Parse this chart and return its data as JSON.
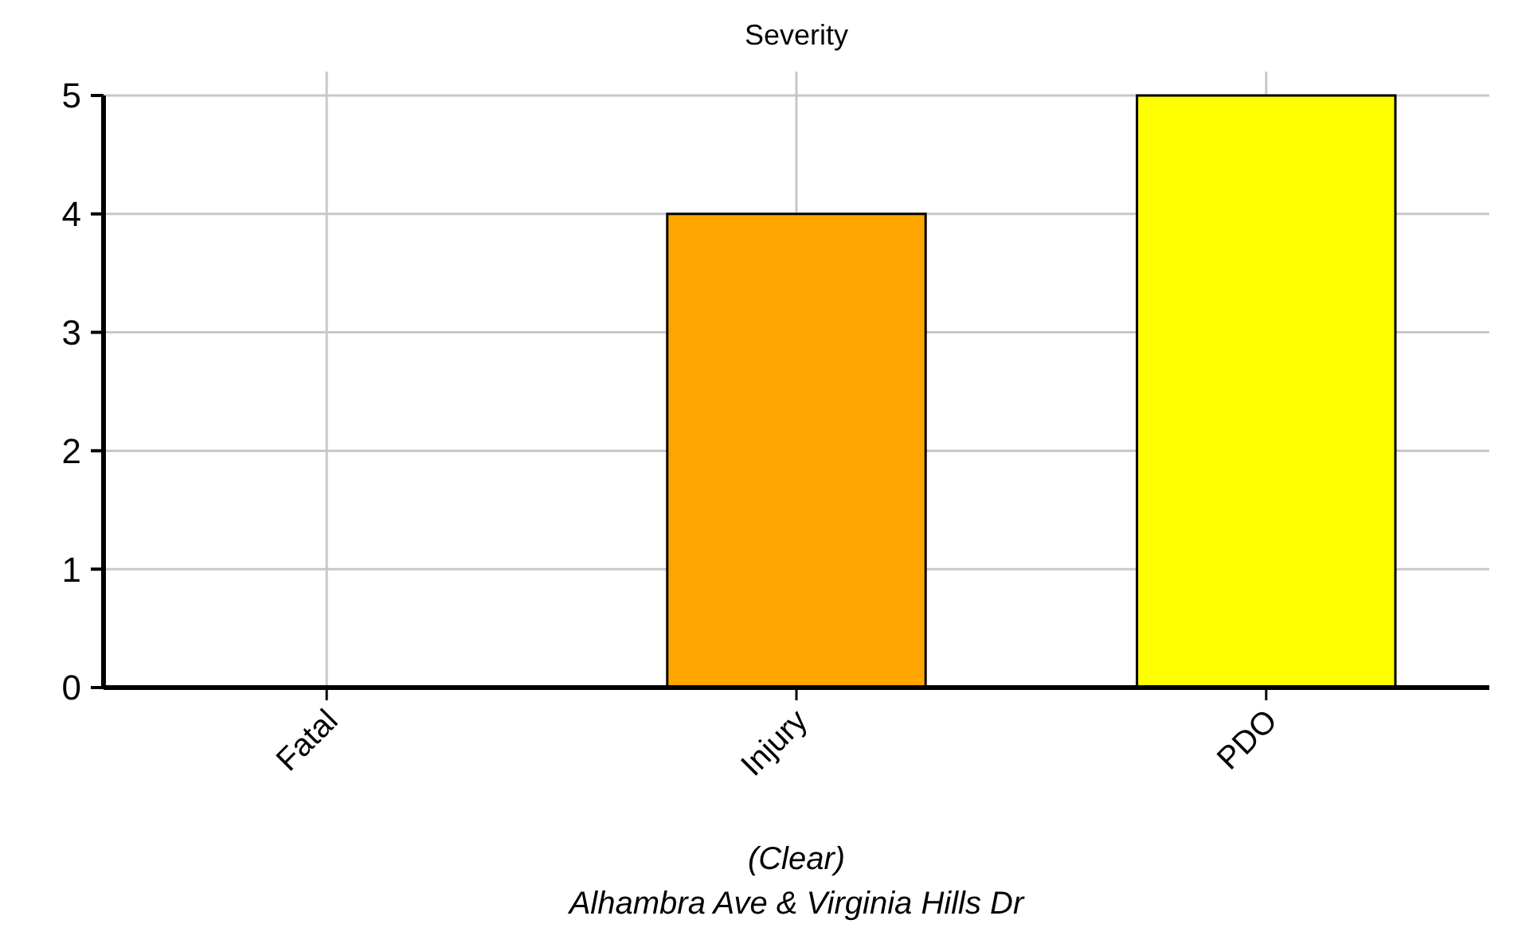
{
  "chart_data": {
    "type": "bar",
    "title": "Severity",
    "xlabel": "(Clear)",
    "annotations": [
      "Alhambra Ave & Virginia Hills Dr"
    ],
    "categories": [
      "Fatal",
      "Injury",
      "PDO"
    ],
    "values": [
      0,
      4,
      5
    ],
    "colors": [
      "#e60000",
      "#ffa500",
      "#ffff00"
    ],
    "ylim": [
      0,
      5
    ],
    "yticks": [
      0,
      1,
      2,
      3,
      4,
      5
    ],
    "grid": true
  }
}
